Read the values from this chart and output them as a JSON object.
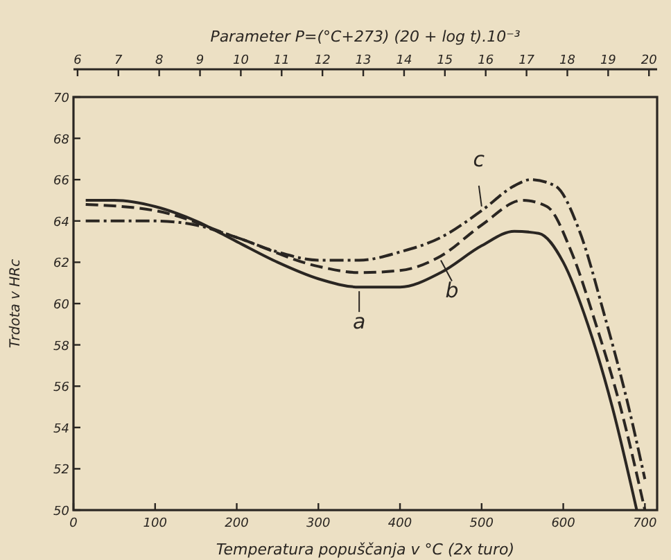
{
  "chart_data": {
    "type": "line",
    "xlabel": "Temperatura popuščanja v °C (2x turo)",
    "ylabel": "Trdota v HRc",
    "x2label": "Parameter P=(°C+273) (20 + log t).10⁻³",
    "xlim": [
      0,
      715
    ],
    "xticks": [
      0,
      100,
      200,
      300,
      400,
      500,
      600,
      700
    ],
    "ylim": [
      50,
      70
    ],
    "yticks": [
      50,
      52,
      54,
      56,
      58,
      60,
      62,
      64,
      66,
      68,
      70
    ],
    "x2lim": [
      5.9,
      20.2
    ],
    "x2ticks": [
      6,
      7,
      8,
      9,
      10,
      11,
      12,
      13,
      14,
      15,
      16,
      17,
      18,
      19,
      20
    ],
    "grid": false,
    "marker": "none",
    "series": [
      {
        "color": "#2a2622",
        "line_style": "solid",
        "x": [
          15,
          50,
          100,
          150,
          200,
          250,
          300,
          350,
          400,
          450,
          500,
          540,
          570,
          600,
          630,
          660,
          690
        ],
        "values": [
          65.0,
          65.0,
          64.7,
          64.0,
          63.0,
          62.0,
          61.2,
          60.8,
          60.8,
          61.5,
          62.8,
          63.5,
          63.4,
          62.0,
          59.0,
          55.0,
          50.0
        ]
      },
      {
        "color": "#2a2622",
        "line_style": "dashed",
        "x": [
          15,
          100,
          200,
          300,
          350,
          400,
          450,
          500,
          550,
          580,
          610,
          640,
          670,
          700
        ],
        "values": [
          64.8,
          64.5,
          63.2,
          61.8,
          61.5,
          61.6,
          62.3,
          63.8,
          65.0,
          64.7,
          62.5,
          59.0,
          55.0,
          50.0
        ]
      },
      {
        "color": "#2a2622",
        "line_style": "dashdot",
        "x": [
          15,
          100,
          150,
          200,
          250,
          300,
          350,
          400,
          450,
          500,
          540,
          560,
          590,
          620,
          650,
          680,
          700
        ],
        "values": [
          64.0,
          64.0,
          63.8,
          63.2,
          62.5,
          62.1,
          62.1,
          62.5,
          63.2,
          64.5,
          65.7,
          66.0,
          65.7,
          63.5,
          59.5,
          55.0,
          51.5
        ]
      }
    ],
    "annotations": [
      "a",
      "b",
      "c"
    ]
  }
}
